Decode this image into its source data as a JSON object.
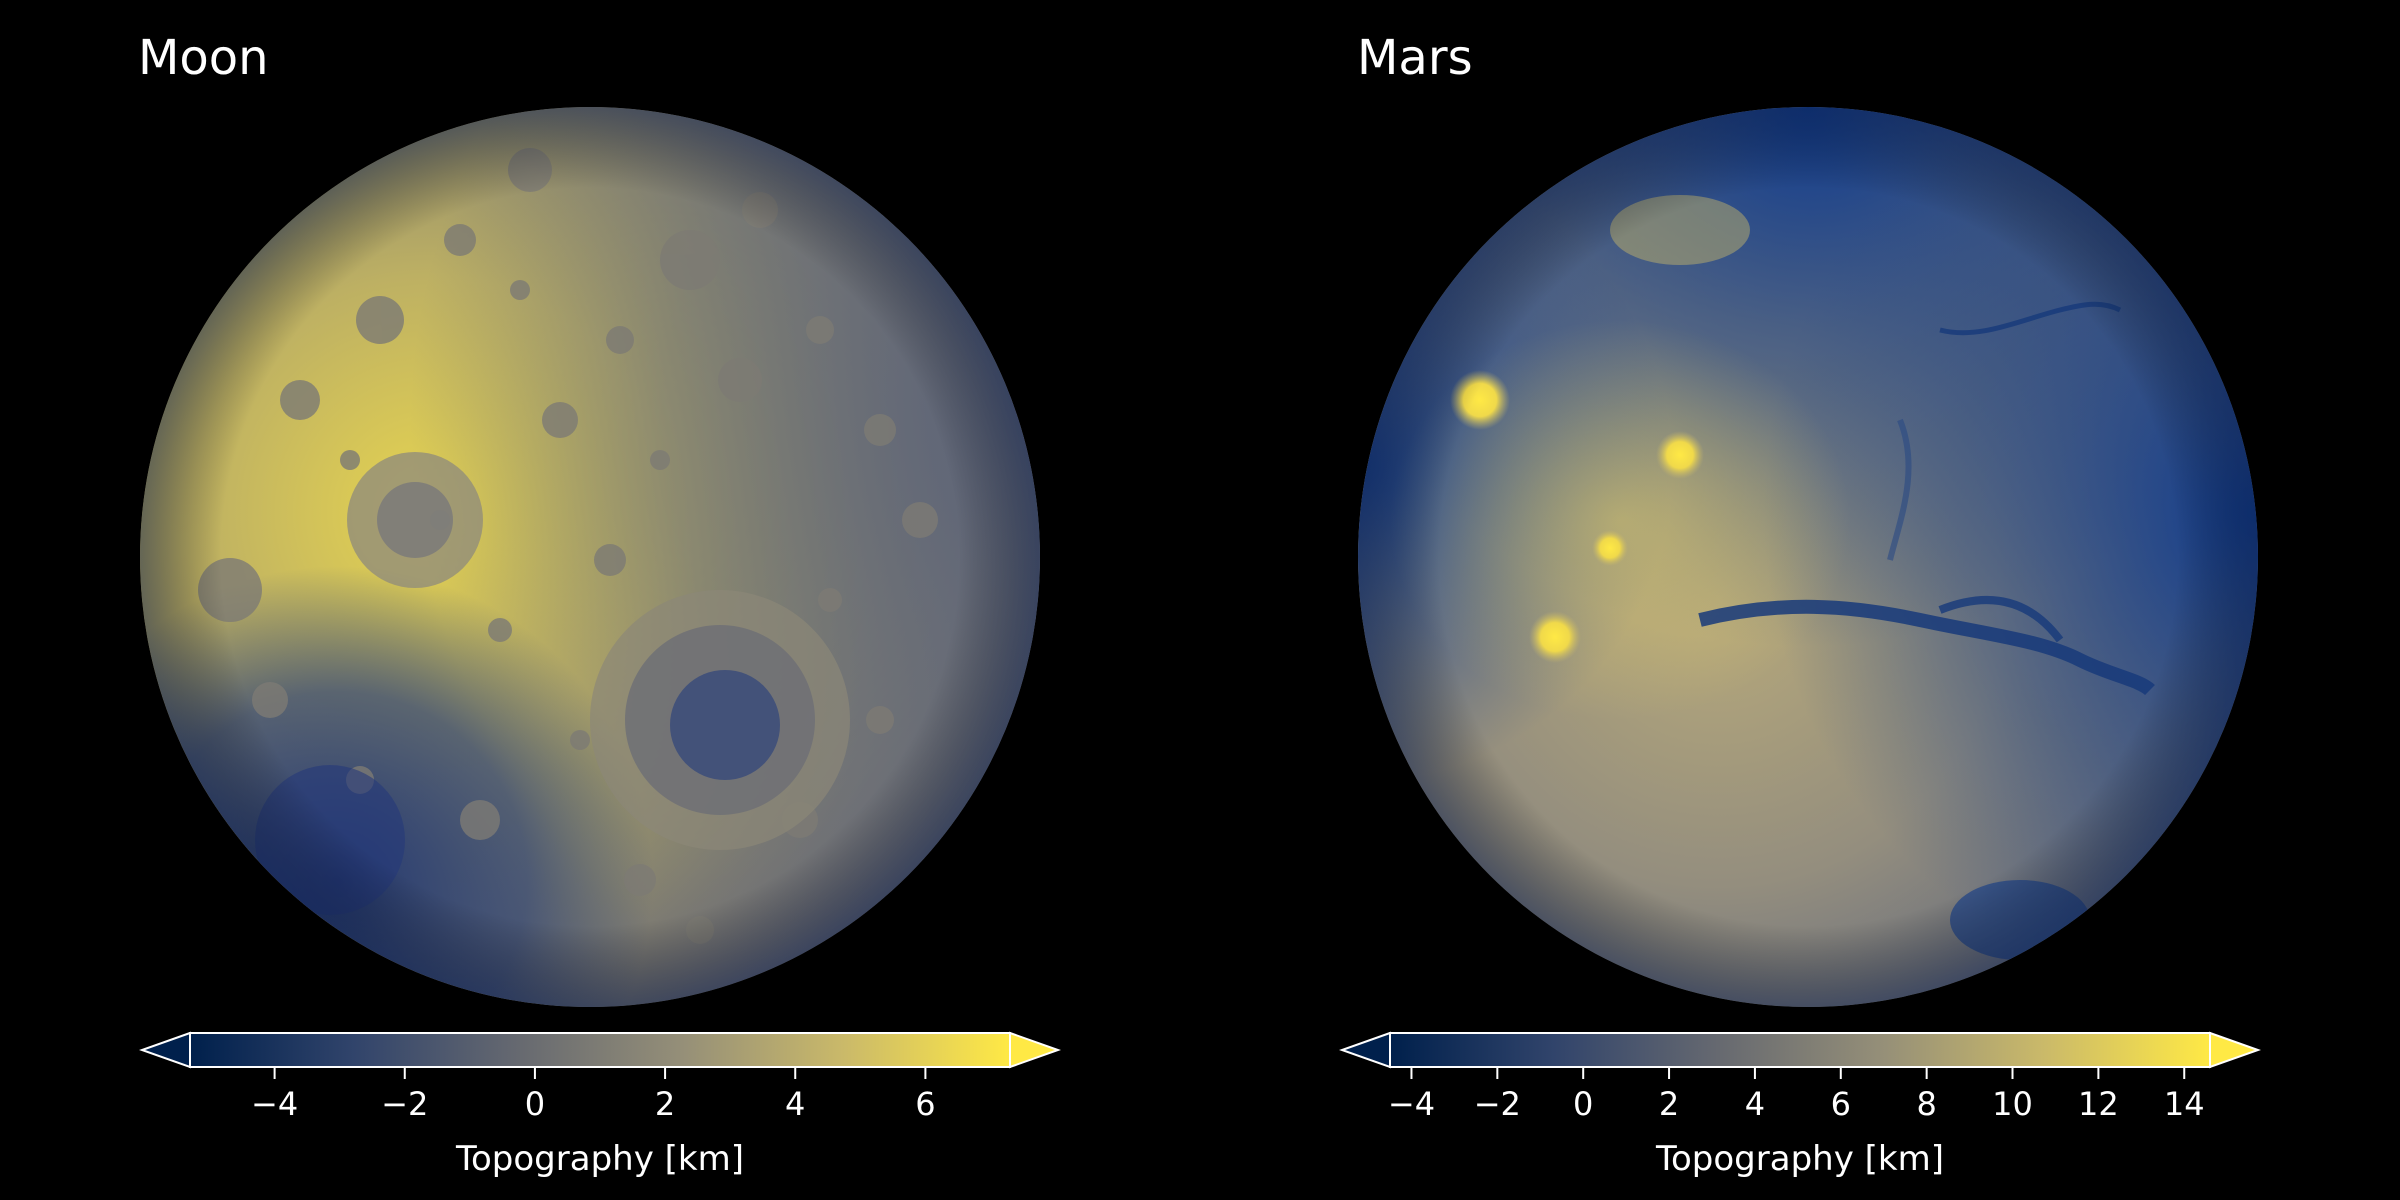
{
  "panels": [
    {
      "title": "Moon",
      "colorbar": {
        "label": "Topography [km]",
        "ticks": [
          "−4",
          "−2",
          "0",
          "2",
          "4",
          "6"
        ],
        "tick_values": [
          -4,
          -2,
          0,
          2,
          4,
          6
        ],
        "range": [
          -5.3,
          7.3
        ],
        "extend": "both"
      }
    },
    {
      "title": "Mars",
      "colorbar": {
        "label": "Topography [km]",
        "ticks": [
          "−4",
          "−2",
          "0",
          "2",
          "4",
          "6",
          "8",
          "10",
          "12",
          "14"
        ],
        "tick_values": [
          -4,
          -2,
          0,
          2,
          4,
          6,
          8,
          10,
          12,
          14
        ],
        "range": [
          -4.5,
          14.6
        ],
        "extend": "both"
      }
    }
  ],
  "colormap": {
    "name": "cividis",
    "stops": [
      "#00204c",
      "#31446b",
      "#666970",
      "#958f78",
      "#cbba69",
      "#ffe945"
    ]
  }
}
